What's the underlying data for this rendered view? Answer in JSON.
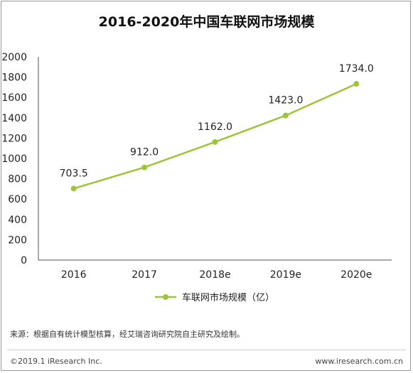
{
  "title": "2016-2020年中国车联网市场规模",
  "chart_data": {
    "type": "line",
    "title": "2016-2020年中国车联网市场规模",
    "categories": [
      "2016",
      "2017",
      "2018e",
      "2019e",
      "2020e"
    ],
    "series": [
      {
        "name": "车联网市场规模（亿）",
        "values": [
          703.5,
          912.0,
          1162.0,
          1423.0,
          1734.0
        ]
      }
    ],
    "data_labels": [
      "703.5",
      "912.0",
      "1162.0",
      "1423.0",
      "1734.0"
    ],
    "ylim": [
      0,
      2000
    ],
    "yticks": [
      0,
      200,
      400,
      600,
      800,
      1000,
      1200,
      1400,
      1600,
      1800,
      2000
    ],
    "grid": false,
    "legend": "bottom-center",
    "line_color": "#9dc43a"
  },
  "source": "来源：根据自有统计模型核算，经艾瑞咨询研究院自主研究及绘制。",
  "copyright": "©2019.1 iResearch Inc.",
  "website": "www.iresearch.com.cn"
}
